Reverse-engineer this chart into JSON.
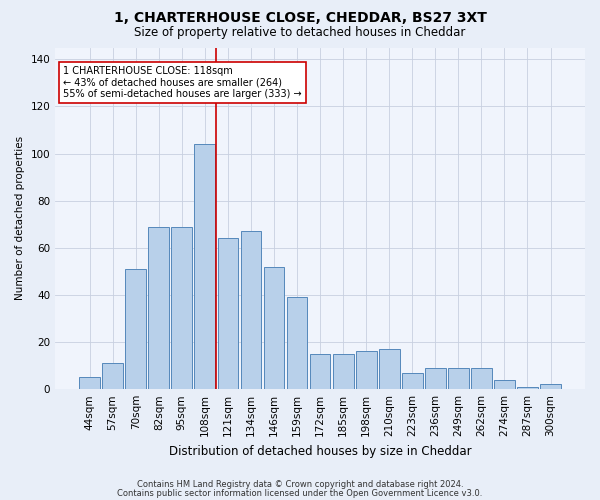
{
  "title1": "1, CHARTERHOUSE CLOSE, CHEDDAR, BS27 3XT",
  "title2": "Size of property relative to detached houses in Cheddar",
  "xlabel": "Distribution of detached houses by size in Cheddar",
  "ylabel": "Number of detached properties",
  "categories": [
    "44sqm",
    "57sqm",
    "70sqm",
    "82sqm",
    "95sqm",
    "108sqm",
    "121sqm",
    "134sqm",
    "146sqm",
    "159sqm",
    "172sqm",
    "185sqm",
    "198sqm",
    "210sqm",
    "223sqm",
    "236sqm",
    "249sqm",
    "262sqm",
    "274sqm",
    "287sqm",
    "300sqm"
  ],
  "bar_heights": [
    5,
    11,
    51,
    69,
    69,
    104,
    64,
    67,
    52,
    39,
    15,
    15,
    16,
    17,
    7,
    9,
    9,
    9,
    4,
    1,
    2
  ],
  "bar_color": "#b8d0ea",
  "bar_edge_color": "#5588bb",
  "vline_color": "#cc0000",
  "annotation_text": "1 CHARTERHOUSE CLOSE: 118sqm\n← 43% of detached houses are smaller (264)\n55% of semi-detached houses are larger (333) →",
  "annotation_box_color": "#cc0000",
  "ylim": [
    0,
    145
  ],
  "yticks": [
    0,
    20,
    40,
    60,
    80,
    100,
    120,
    140
  ],
  "footer1": "Contains HM Land Registry data © Crown copyright and database right 2024.",
  "footer2": "Contains public sector information licensed under the Open Government Licence v3.0.",
  "bg_color": "#e8eef8",
  "plot_bg_color": "#f0f4fc"
}
